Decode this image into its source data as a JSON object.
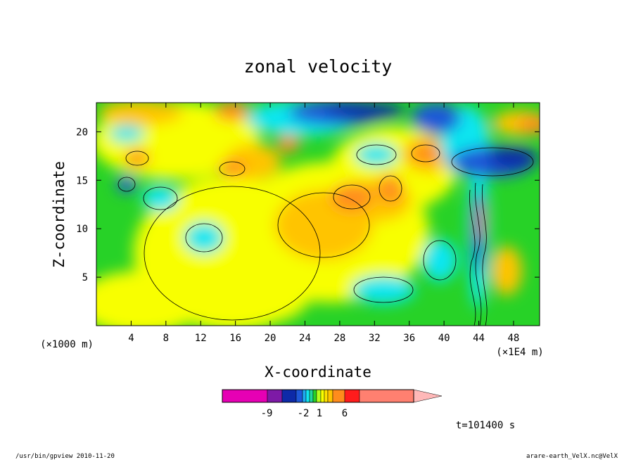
{
  "chart_data": {
    "type": "heatmap",
    "title": "zonal velocity",
    "xlabel": "X-coordinate",
    "ylabel": "Z-coordinate",
    "x_unit": "(×1000 m)",
    "x_scale_note": "(×1E4 m)",
    "xlim": [
      0,
      51
    ],
    "ylim": [
      0,
      23
    ],
    "x_ticks": [
      4,
      8,
      12,
      16,
      20,
      24,
      28,
      32,
      36,
      40,
      44,
      48
    ],
    "y_ticks": [
      5,
      10,
      15,
      20
    ],
    "colorbar": {
      "colors": [
        "#e600b4",
        "#7d1aa6",
        "#0d2aa8",
        "#1e58d8",
        "#1ea8f0",
        "#11e6f0",
        "#20d69e",
        "#27d227",
        "#b4ff1c",
        "#f8ff00",
        "#ffe000",
        "#ffc400",
        "#ff8c1c",
        "#ff1c1c",
        "#ff8070",
        "#ffb8b8"
      ],
      "tick_labels": [
        "-9",
        "-2",
        "1",
        "6"
      ]
    },
    "timestamp": "t=101400 s"
  },
  "footer": {
    "left": "/usr/bin/gpview   2010-11-20",
    "right": "arare-earth_VelX.nc@VelX"
  }
}
